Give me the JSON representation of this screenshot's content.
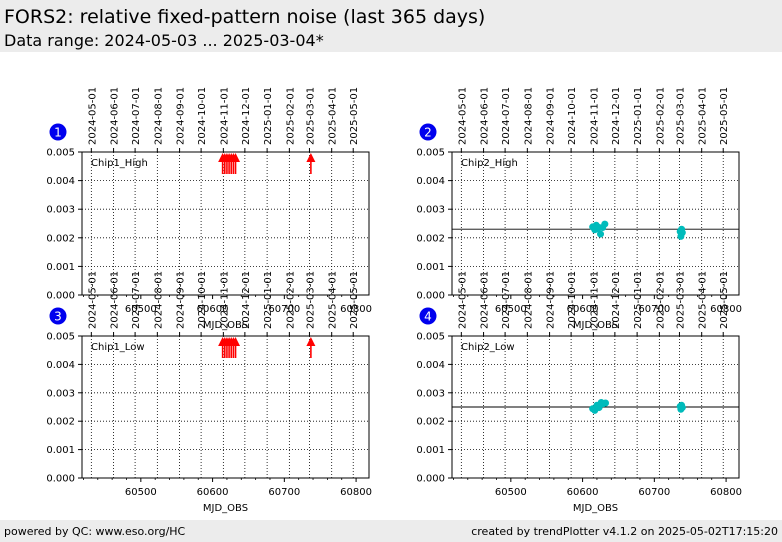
{
  "header": {
    "title": "FORS2: relative fixed-pattern noise (last 365 days)",
    "subtitle": "Data range: 2024-05-03 ... 2025-03-04*"
  },
  "footer": {
    "left": "powered by QC: www.eso.org/HC",
    "right": "created by trendPlotter v4.1.2 on 2025-05-02T17:15:20"
  },
  "colors": {
    "header_bg": "#ececec",
    "marker_badge": "#0000ee",
    "out_of_range_arrow": "#ff0000",
    "data_point": "#00bbbb",
    "reference_line": "#000000"
  },
  "date_ticks": [
    {
      "label": "2024-05-01",
      "mjd": 60431
    },
    {
      "label": "2024-06-01",
      "mjd": 60462
    },
    {
      "label": "2024-07-01",
      "mjd": 60492
    },
    {
      "label": "2024-08-01",
      "mjd": 60523
    },
    {
      "label": "2024-09-01",
      "mjd": 60554
    },
    {
      "label": "2024-10-01",
      "mjd": 60584
    },
    {
      "label": "2024-11-01",
      "mjd": 60615
    },
    {
      "label": "2024-12-01",
      "mjd": 60645
    },
    {
      "label": "2025-01-01",
      "mjd": 60676
    },
    {
      "label": "2025-02-01",
      "mjd": 60707
    },
    {
      "label": "2025-03-01",
      "mjd": 60735
    },
    {
      "label": "2025-04-01",
      "mjd": 60766
    },
    {
      "label": "2025-05-01",
      "mjd": 60796
    }
  ],
  "chart_data": [
    {
      "type": "scatter",
      "panel_number": "1",
      "label": "Chip1_High",
      "xlabel": "MJD_OBS",
      "xlim": [
        60418,
        60818
      ],
      "ylim": [
        0,
        0.005
      ],
      "xticks": [
        60500,
        60600,
        60700,
        60800
      ],
      "yticks": [
        "0.000",
        "0.001",
        "0.002",
        "0.003",
        "0.004",
        "0.005"
      ],
      "grid": true,
      "points": [],
      "out_of_range_above": [
        60614,
        60617,
        60620,
        60623,
        60626,
        60629,
        60632,
        60737
      ],
      "reference_line": null
    },
    {
      "type": "scatter",
      "panel_number": "2",
      "label": "Chip2_High",
      "xlabel": "MJD_OBS",
      "xlim": [
        60418,
        60818
      ],
      "ylim": [
        0,
        0.005
      ],
      "xticks": [
        60500,
        60600,
        60700,
        60800
      ],
      "yticks": [
        "0.000",
        "0.001",
        "0.002",
        "0.003",
        "0.004",
        "0.005"
      ],
      "grid": true,
      "points": [
        {
          "x": 60614,
          "y": 0.00238
        },
        {
          "x": 60617,
          "y": 0.00228
        },
        {
          "x": 60619,
          "y": 0.00244
        },
        {
          "x": 60621,
          "y": 0.00232
        },
        {
          "x": 60623,
          "y": 0.00236
        },
        {
          "x": 60625,
          "y": 0.00213
        },
        {
          "x": 60628,
          "y": 0.00236
        },
        {
          "x": 60631,
          "y": 0.00248
        },
        {
          "x": 60736,
          "y": 0.00222
        },
        {
          "x": 60737,
          "y": 0.00205
        },
        {
          "x": 60738,
          "y": 0.0023
        },
        {
          "x": 60739,
          "y": 0.00218
        }
      ],
      "out_of_range_above": [],
      "reference_line": 0.0023
    },
    {
      "type": "scatter",
      "panel_number": "3",
      "label": "Chip1_Low",
      "xlabel": "MJD_OBS",
      "xlim": [
        60418,
        60818
      ],
      "ylim": [
        0,
        0.005
      ],
      "xticks": [
        60500,
        60600,
        60700,
        60800
      ],
      "yticks": [
        "0.000",
        "0.001",
        "0.002",
        "0.003",
        "0.004",
        "0.005"
      ],
      "grid": true,
      "points": [],
      "out_of_range_above": [
        60614,
        60617,
        60620,
        60623,
        60626,
        60629,
        60632,
        60737
      ],
      "reference_line": null
    },
    {
      "type": "scatter",
      "panel_number": "4",
      "label": "Chip2_Low",
      "xlabel": "MJD_OBS",
      "xlim": [
        60418,
        60818
      ],
      "ylim": [
        0,
        0.005
      ],
      "xticks": [
        60500,
        60600,
        60700,
        60800
      ],
      "yticks": [
        "0.000",
        "0.001",
        "0.002",
        "0.003",
        "0.004",
        "0.005"
      ],
      "grid": true,
      "points": [
        {
          "x": 60614,
          "y": 0.00244
        },
        {
          "x": 60617,
          "y": 0.00238
        },
        {
          "x": 60620,
          "y": 0.00256
        },
        {
          "x": 60623,
          "y": 0.00248
        },
        {
          "x": 60626,
          "y": 0.00266
        },
        {
          "x": 60629,
          "y": 0.00262
        },
        {
          "x": 60632,
          "y": 0.00264
        },
        {
          "x": 60736,
          "y": 0.00252
        },
        {
          "x": 60737,
          "y": 0.00242
        },
        {
          "x": 60738,
          "y": 0.00256
        },
        {
          "x": 60739,
          "y": 0.00248
        }
      ],
      "out_of_range_above": [],
      "reference_line": 0.0025
    }
  ]
}
